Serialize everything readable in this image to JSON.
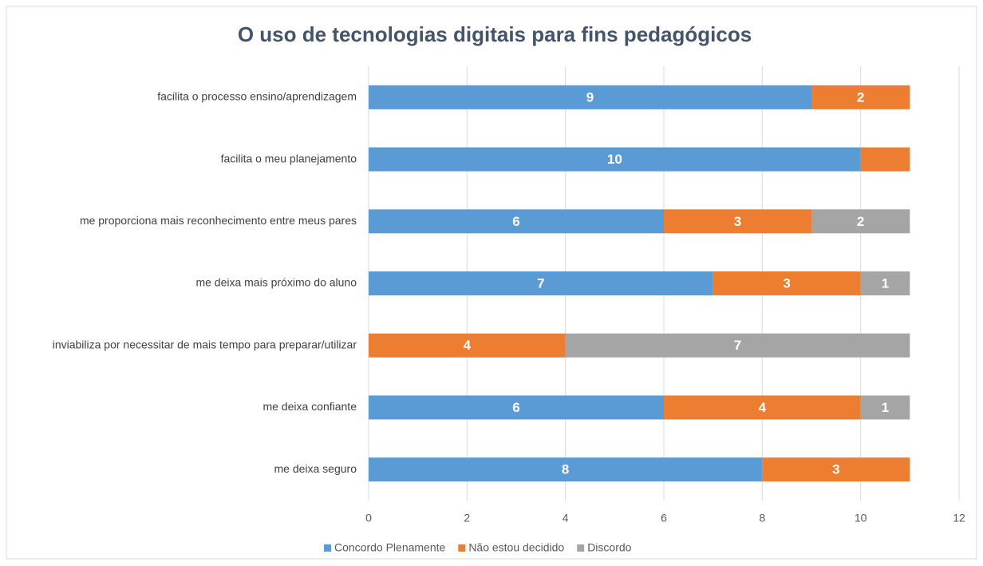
{
  "chart_data": {
    "type": "stacked_barh",
    "title": "O uso de tecnologias digitais para fins pedagógicos",
    "categories": [
      "facilita o processo ensino/aprendizagem",
      "facilita o meu planejamento",
      "me proporciona mais reconhecimento entre meus pares",
      "me deixa mais próximo do aluno",
      "inviabiliza por necessitar de mais tempo para preparar/utilizar",
      "me deixa confiante",
      "me deixa seguro"
    ],
    "series": [
      {
        "name": "Concordo Plenamente",
        "color": "#5b9bd5",
        "values": [
          9,
          10,
          6,
          7,
          null,
          6,
          8
        ]
      },
      {
        "name": "Não estou decidido",
        "color": "#ed7d31",
        "values": [
          2,
          1,
          3,
          3,
          4,
          4,
          3
        ],
        "value_labels": [
          "2",
          null,
          "3",
          "3",
          "4",
          "4",
          "3"
        ]
      },
      {
        "name": "Discordo",
        "color": "#a5a5a5",
        "values": [
          null,
          null,
          2,
          1,
          7,
          1,
          null
        ]
      }
    ],
    "xlim": [
      0,
      12
    ],
    "xticks": [
      0,
      2,
      4,
      6,
      8,
      10,
      12
    ],
    "grid": true,
    "legend": "bottom"
  }
}
